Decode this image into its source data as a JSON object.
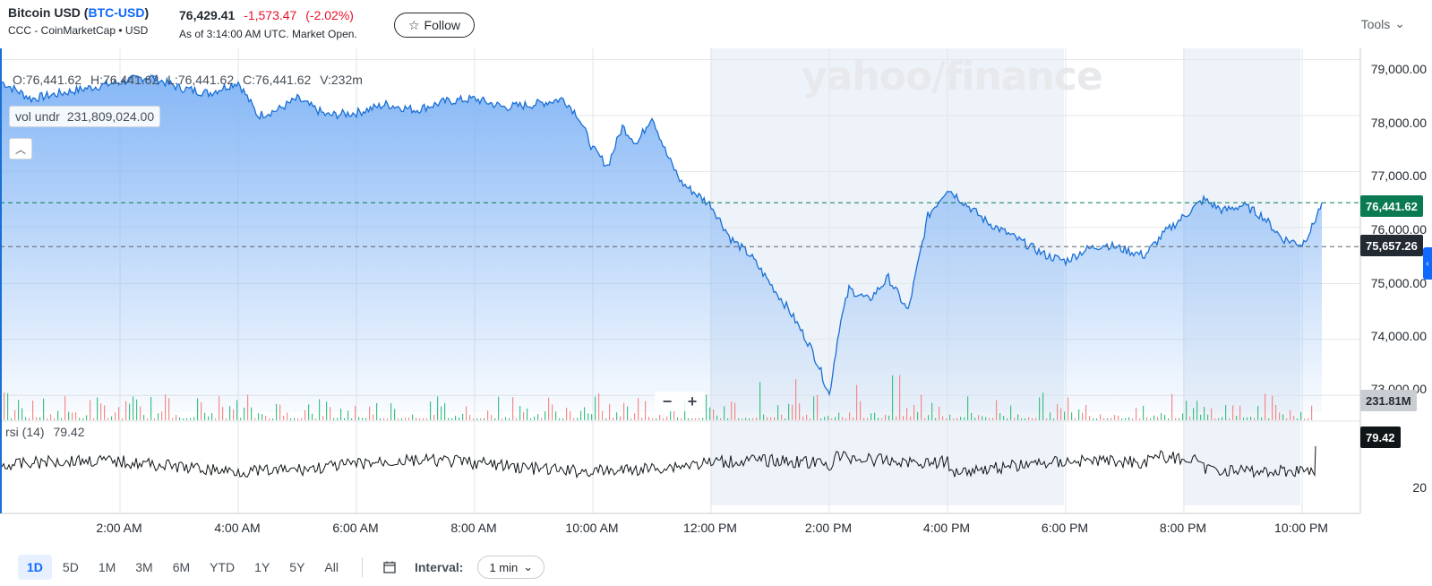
{
  "header": {
    "name": "Bitcoin USD",
    "symbol_open": "(",
    "symbol": "BTC-USD",
    "symbol_close": ")",
    "source": "CCC - CoinMarketCap • USD",
    "price": "76,429.41",
    "change": "-1,573.47",
    "change_pct": "(-2.02%)",
    "as_of": "As of 3:14:00 AM UTC. Market Open.",
    "follow_label": "Follow",
    "tools_label": "Tools"
  },
  "overlay": {
    "open": "O:76,441.62",
    "high": "H:76,441.62",
    "low": "L:76,441.62",
    "close": "C:76,441.62",
    "volume": "V:232m",
    "vol_name": "vol undr",
    "vol_value": "231,809,024.00",
    "rsi_name": "rsi (14)",
    "rsi_value": "79.42",
    "watermark": "yahoo/finance",
    "zoom_out": "−",
    "zoom_in": "+"
  },
  "tags": {
    "last_price": "76,441.62",
    "prev_close": "75,657.26",
    "volume": "231.81M",
    "rsi": "79.42"
  },
  "yaxis": {
    "labels": [
      "79,000.00",
      "78,000.00",
      "77,000.00",
      "76,000.00",
      "75,000.00",
      "74,000.00",
      "73,000.00"
    ],
    "rsi_label": "20"
  },
  "xaxis": {
    "labels": [
      "2:00 AM",
      "4:00 AM",
      "6:00 AM",
      "8:00 AM",
      "10:00 AM",
      "12:00 PM",
      "2:00 PM",
      "4:00 PM",
      "6:00 PM",
      "8:00 PM",
      "10:00 PM"
    ]
  },
  "footer": {
    "ranges": [
      "1D",
      "5D",
      "1M",
      "3M",
      "6M",
      "YTD",
      "1Y",
      "5Y",
      "All"
    ],
    "active_range": "1D",
    "interval_label": "Interval:",
    "interval_value": "1 min"
  },
  "colors": {
    "line": "#1a6fd6",
    "area_top": "#7fb3f5",
    "up_volume": "#3ec08a",
    "down_volume": "#f28b8b",
    "rsi_line": "#101518",
    "change_negative": "#eb0f29"
  },
  "chart_data": {
    "type": "area",
    "ylim": [
      72700,
      79200
    ],
    "price_series": {
      "x": [
        "0:00",
        "0:30",
        "1:00",
        "1:30",
        "2:00",
        "2:30",
        "3:00",
        "3:30",
        "4:00",
        "4:20",
        "4:40",
        "5:00",
        "5:30",
        "6:00",
        "6:30",
        "7:00",
        "7:30",
        "8:00",
        "8:30",
        "9:00",
        "9:30",
        "9:45",
        "10:00",
        "10:15",
        "10:30",
        "10:45",
        "11:00",
        "11:15",
        "11:30",
        "12:00",
        "12:20",
        "12:40",
        "13:00",
        "13:20",
        "13:40",
        "13:50",
        "14:00",
        "14:10",
        "14:20",
        "14:40",
        "15:00",
        "15:20",
        "15:40",
        "16:00",
        "16:20",
        "16:40",
        "17:00",
        "17:20",
        "17:40",
        "18:00",
        "18:20",
        "18:40",
        "19:00",
        "19:20",
        "19:40",
        "20:00",
        "20:20",
        "20:40",
        "21:00",
        "21:20",
        "21:40",
        "22:00",
        "22:10",
        "22:20"
      ],
      "values": [
        78600,
        78300,
        78400,
        78500,
        78600,
        78700,
        78500,
        78400,
        78600,
        78000,
        78100,
        78300,
        78000,
        78050,
        78200,
        78100,
        78250,
        78300,
        78150,
        78200,
        78300,
        78000,
        77400,
        77100,
        77800,
        77500,
        78000,
        77300,
        76800,
        76400,
        75800,
        75500,
        75000,
        74500,
        73900,
        73500,
        73000,
        74200,
        74900,
        74700,
        75100,
        74500,
        76200,
        76700,
        76400,
        76100,
        75900,
        75700,
        75500,
        75400,
        75600,
        75700,
        75600,
        75500,
        75900,
        76200,
        76500,
        76300,
        76400,
        76200,
        75800,
        75700,
        76000,
        76441
      ]
    },
    "reference_lines": [
      76441.62,
      75657.26
    ],
    "rsi": {
      "last": 79.42
    }
  }
}
